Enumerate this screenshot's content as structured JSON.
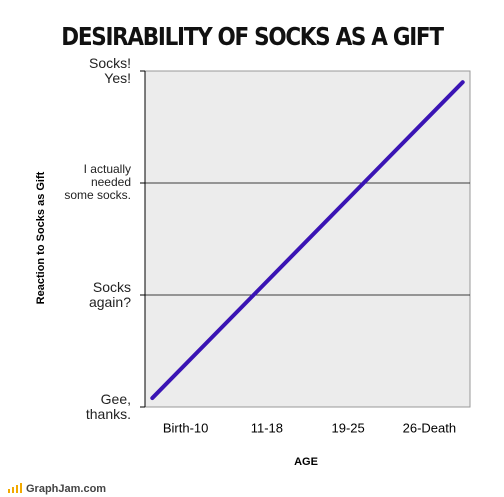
{
  "chart_data": {
    "type": "line",
    "title": "DESIRABILITY OF SOCKS AS A GIFT",
    "x_label": "AGE",
    "y_label": "Reaction to Socks as Gift",
    "xlim": [
      0,
      4
    ],
    "xticks": [
      {
        "value": 0.5,
        "label": "Birth-10"
      },
      {
        "value": 1.5,
        "label": "11-18"
      },
      {
        "value": 2.5,
        "label": "19-25"
      },
      {
        "value": 3.5,
        "label": "26-Death"
      }
    ],
    "ylim": [
      0,
      3
    ],
    "yticks": [
      {
        "value": 0,
        "label": "Gee, thanks."
      },
      {
        "value": 1,
        "label": "Socks again?"
      },
      {
        "value": 2,
        "label": "I actually needed some socks."
      },
      {
        "value": 3,
        "label": "Socks! Yes!"
      }
    ],
    "grid": true,
    "series": [
      {
        "color": "#3a14b4",
        "x": [
          0.09,
          3.91
        ],
        "values": [
          0.08,
          2.9
        ]
      }
    ],
    "footer": "GraphJam.com"
  }
}
